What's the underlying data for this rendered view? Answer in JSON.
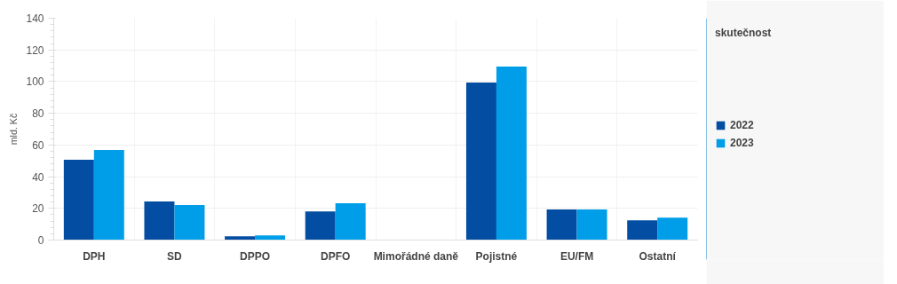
{
  "chart_data": {
    "type": "bar",
    "ylabel": "mld. Kč",
    "legend_title": "skutečnost",
    "categories": [
      "DPH",
      "SD",
      "DPPO",
      "DPFO",
      "Mimořádné daně",
      "Pojistné",
      "EU/FM",
      "Ostatní"
    ],
    "series": [
      {
        "name": "2022",
        "color": "#034ea2",
        "values": [
          50.7,
          24.3,
          2.4,
          18.1,
          0,
          99.4,
          19.3,
          12.5
        ]
      },
      {
        "name": "2023",
        "color": "#009ee8",
        "values": [
          56.8,
          22.1,
          3.0,
          23.2,
          0,
          109.5,
          19.3,
          14.2
        ]
      }
    ],
    "ylim": [
      0,
      140
    ],
    "yticks": [
      0,
      20,
      40,
      60,
      80,
      100,
      120,
      140
    ],
    "grid": true,
    "legend": "right"
  }
}
